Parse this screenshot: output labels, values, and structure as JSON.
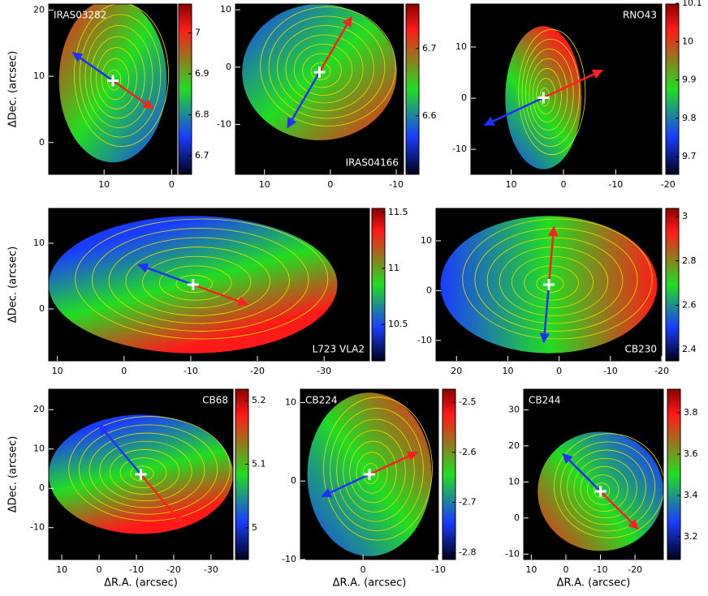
{
  "chart_data": [
    {
      "type": "image",
      "title": "IRAS03282",
      "ylabel": "ΔDec. (arcsec)",
      "xlim": [
        18.2,
        -0.8
      ],
      "xticks": [
        10,
        0
      ],
      "ylim": [
        -4.8,
        20.9
      ],
      "yticks": [
        20,
        10,
        0
      ],
      "clim": [
        6.655,
        7.07
      ],
      "cticks": [
        7,
        6.9,
        6.8,
        6.7
      ]
    },
    {
      "type": "image",
      "title": "IRAS04166",
      "xlim": [
        14.4,
        -11.1
      ],
      "xticks": [
        10,
        0,
        -10
      ],
      "ylim": [
        -18.7,
        11
      ],
      "yticks": [
        10,
        0,
        -10
      ],
      "clim": [
        6.513,
        6.766
      ],
      "cticks": [
        6.7,
        6.6
      ]
    },
    {
      "type": "image",
      "title": "RNO43",
      "xlim": [
        17.7,
        -18.8
      ],
      "xticks": [
        10,
        0,
        -10,
        -20
      ],
      "ylim": [
        -14.9,
        18.4
      ],
      "yticks": [
        10,
        0,
        -10
      ],
      "clim": [
        9.654,
        10.098
      ],
      "cticks": [
        10.1,
        10,
        9.9,
        9.8,
        9.7
      ]
    },
    {
      "type": "image",
      "title": "L723 VLA2",
      "ylabel": "ΔDec. (arcsec)",
      "xlim": [
        11.3,
        -36.8
      ],
      "xticks": [
        10,
        0,
        -10,
        -20,
        -30
      ],
      "ylim": [
        -7.9,
        15.3
      ],
      "yticks": [
        10,
        0
      ],
      "clim": [
        10.174,
        11.536
      ],
      "cticks": [
        11.5,
        11,
        10.5
      ]
    },
    {
      "type": "image",
      "title": "CB230",
      "xlim": [
        24,
        -20
      ],
      "xticks": [
        20,
        10,
        0,
        -10,
        -20
      ],
      "ylim": [
        -14.1,
        16.5
      ],
      "yticks": [
        10,
        0,
        -10
      ],
      "clim": [
        2.349,
        3.037
      ],
      "cticks": [
        3,
        2.8,
        2.6,
        2.4
      ]
    },
    {
      "type": "image",
      "title": "CB68",
      "ylabel": "ΔDec. (arcsec)",
      "xlabel": "ΔR.A. (arcsec)",
      "xlim": [
        13.5,
        -35.9
      ],
      "xticks": [
        10,
        0,
        -10,
        -20,
        -30
      ],
      "ylim": [
        -18.1,
        25.2
      ],
      "yticks": [
        20,
        10,
        0,
        -10
      ],
      "clim": [
        4.95,
        5.218
      ],
      "cticks": [
        5.2,
        5.1,
        5
      ]
    },
    {
      "type": "image",
      "title": "CB224",
      "xlabel": "ΔR.A. (arcsec)",
      "xlim": [
        8.3,
        -10
      ],
      "xticks": [
        0,
        -10
      ],
      "ylim": [
        -10,
        11.7
      ],
      "yticks": [
        10,
        0,
        -10
      ],
      "clim": [
        -2.814,
        -2.474
      ],
      "cticks": [
        -2.5,
        -2.6,
        -2.7,
        -2.8
      ]
    },
    {
      "type": "image",
      "title": "CB244",
      "xlabel": "ΔR.A. (arcsec)",
      "xlim": [
        12.2,
        -28.2
      ],
      "xticks": [
        10,
        0,
        -10,
        -20
      ],
      "ylim": [
        -11.5,
        35.7
      ],
      "yticks": [
        30,
        20,
        10,
        0,
        -10
      ],
      "clim": [
        3.09,
        3.914
      ],
      "cticks": [
        3.8,
        3.6,
        3.4,
        3.2
      ]
    }
  ]
}
